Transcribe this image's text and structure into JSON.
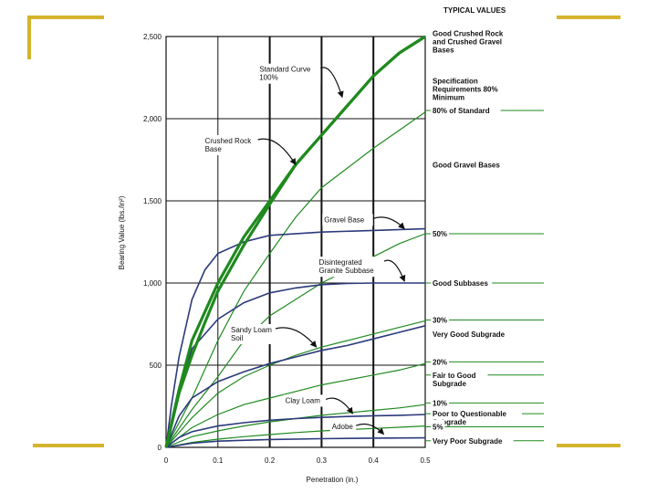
{
  "colors": {
    "slide_accent": "#d4b42c",
    "green_curve": "#1f8a1f",
    "blue_curve": "#2b3a7a",
    "grid": "#111111"
  },
  "chart_data": {
    "type": "line",
    "xlabel": "Penetration (in.)",
    "ylabel": "Bearing Value (lbs./in²)",
    "xlim": [
      0,
      0.5
    ],
    "ylim": [
      0,
      2500
    ],
    "x_ticks": [
      "0",
      "0.1",
      "0.2",
      "0.3",
      "0.4",
      "0.5"
    ],
    "y_ticks": [
      "0",
      "500",
      "1,000",
      "1,500",
      "2,000",
      "2,500"
    ],
    "typical_values_header": "TYPICAL VALUES",
    "standard_series": [
      {
        "name": "Standard Curve 100%",
        "label": "Standard Curve\n100%",
        "label_x": 0.18,
        "label_y": 2285,
        "arrow_to": [
          0.34,
          2130
        ],
        "points": [
          [
            0,
            0
          ],
          [
            0.025,
            350
          ],
          [
            0.05,
            650
          ],
          [
            0.1,
            1000
          ],
          [
            0.15,
            1280
          ],
          [
            0.2,
            1500
          ],
          [
            0.25,
            1720
          ],
          [
            0.3,
            1900
          ],
          [
            0.35,
            2080
          ],
          [
            0.4,
            2260
          ],
          [
            0.45,
            2400
          ],
          [
            0.5,
            2560
          ]
        ]
      },
      {
        "name": "Crushed Rock Base",
        "label": "Crushed Rock\nBase",
        "label_x": 0.075,
        "label_y": 1850,
        "arrow_to": [
          0.25,
          1720
        ],
        "points": [
          [
            0,
            0
          ],
          [
            0.025,
            330
          ],
          [
            0.05,
            560
          ],
          [
            0.075,
            760
          ],
          [
            0.1,
            950
          ],
          [
            0.15,
            1230
          ],
          [
            0.2,
            1480
          ],
          [
            0.25,
            1720
          ],
          [
            0.3,
            1900
          ],
          [
            0.35,
            2080
          ],
          [
            0.4,
            2260
          ],
          [
            0.45,
            2400
          ],
          [
            0.5,
            2560
          ]
        ]
      }
    ],
    "green_series": [
      {
        "name": "80% of Standard",
        "points": [
          [
            0,
            0
          ],
          [
            0.05,
            300
          ],
          [
            0.1,
            650
          ],
          [
            0.15,
            950
          ],
          [
            0.2,
            1180
          ],
          [
            0.25,
            1400
          ],
          [
            0.3,
            1580
          ],
          [
            0.35,
            1700
          ],
          [
            0.4,
            1820
          ],
          [
            0.45,
            1930
          ],
          [
            0.5,
            2040
          ]
        ]
      },
      {
        "name": "50%",
        "points": [
          [
            0,
            0
          ],
          [
            0.05,
            230
          ],
          [
            0.1,
            430
          ],
          [
            0.15,
            650
          ],
          [
            0.2,
            800
          ],
          [
            0.25,
            900
          ],
          [
            0.3,
            1000
          ],
          [
            0.35,
            1080
          ],
          [
            0.4,
            1160
          ],
          [
            0.45,
            1240
          ],
          [
            0.5,
            1300
          ]
        ]
      },
      {
        "name": "30%",
        "points": [
          [
            0,
            0
          ],
          [
            0.05,
            180
          ],
          [
            0.1,
            330
          ],
          [
            0.15,
            430
          ],
          [
            0.2,
            500
          ],
          [
            0.25,
            560
          ],
          [
            0.3,
            610
          ],
          [
            0.35,
            650
          ],
          [
            0.4,
            690
          ],
          [
            0.45,
            730
          ],
          [
            0.5,
            770
          ]
        ]
      },
      {
        "name": "20%",
        "points": [
          [
            0,
            0
          ],
          [
            0.05,
            120
          ],
          [
            0.1,
            200
          ],
          [
            0.15,
            260
          ],
          [
            0.2,
            300
          ],
          [
            0.25,
            340
          ],
          [
            0.3,
            380
          ],
          [
            0.35,
            410
          ],
          [
            0.4,
            440
          ],
          [
            0.45,
            470
          ],
          [
            0.5,
            510
          ]
        ]
      },
      {
        "name": "10%",
        "points": [
          [
            0,
            0
          ],
          [
            0.05,
            65
          ],
          [
            0.1,
            100
          ],
          [
            0.15,
            130
          ],
          [
            0.2,
            155
          ],
          [
            0.25,
            175
          ],
          [
            0.3,
            195
          ],
          [
            0.35,
            210
          ],
          [
            0.4,
            225
          ],
          [
            0.45,
            240
          ],
          [
            0.5,
            260
          ]
        ]
      },
      {
        "name": "5%",
        "points": [
          [
            0,
            0
          ],
          [
            0.05,
            30
          ],
          [
            0.1,
            50
          ],
          [
            0.15,
            65
          ],
          [
            0.2,
            78
          ],
          [
            0.25,
            90
          ],
          [
            0.3,
            100
          ],
          [
            0.35,
            108
          ],
          [
            0.4,
            115
          ],
          [
            0.45,
            122
          ],
          [
            0.5,
            130
          ]
        ]
      }
    ],
    "blue_series": [
      {
        "name": "Gravel Base",
        "label": "Gravel Base",
        "label_x": 0.305,
        "label_y": 1370,
        "arrow_to": [
          0.46,
          1330
        ],
        "points": [
          [
            0,
            0
          ],
          [
            0.01,
            250
          ],
          [
            0.025,
            550
          ],
          [
            0.05,
            900
          ],
          [
            0.075,
            1080
          ],
          [
            0.1,
            1180
          ],
          [
            0.15,
            1250
          ],
          [
            0.2,
            1290
          ],
          [
            0.3,
            1310
          ],
          [
            0.4,
            1320
          ],
          [
            0.5,
            1330
          ]
        ]
      },
      {
        "name": "Disintegrated Granite Subbase",
        "label": "Disintegrated\nGranite Subbase",
        "label_x": 0.295,
        "label_y": 1110,
        "arrow_to": [
          0.46,
          1010
        ],
        "points": [
          [
            0,
            0
          ],
          [
            0.025,
            350
          ],
          [
            0.05,
            600
          ],
          [
            0.1,
            780
          ],
          [
            0.15,
            880
          ],
          [
            0.2,
            940
          ],
          [
            0.25,
            970
          ],
          [
            0.3,
            990
          ],
          [
            0.35,
            997
          ],
          [
            0.4,
            1000
          ],
          [
            0.45,
            1000
          ],
          [
            0.5,
            1000
          ]
        ]
      },
      {
        "name": "Sandy Loam Soil",
        "label": "Sandy Loam\nSoil",
        "label_x": 0.125,
        "label_y": 700,
        "arrow_to": [
          0.29,
          610
        ],
        "points": [
          [
            0,
            0
          ],
          [
            0.025,
            190
          ],
          [
            0.05,
            300
          ],
          [
            0.1,
            400
          ],
          [
            0.15,
            460
          ],
          [
            0.2,
            510
          ],
          [
            0.25,
            550
          ],
          [
            0.3,
            590
          ],
          [
            0.35,
            620
          ],
          [
            0.4,
            660
          ],
          [
            0.45,
            700
          ],
          [
            0.5,
            740
          ]
        ]
      },
      {
        "name": "Clay Loam",
        "label": "Clay Loam",
        "label_x": 0.23,
        "label_y": 270,
        "arrow_to": [
          0.36,
          205
        ],
        "points": [
          [
            0,
            0
          ],
          [
            0.025,
            60
          ],
          [
            0.05,
            95
          ],
          [
            0.1,
            130
          ],
          [
            0.15,
            150
          ],
          [
            0.2,
            165
          ],
          [
            0.25,
            175
          ],
          [
            0.3,
            182
          ],
          [
            0.35,
            188
          ],
          [
            0.4,
            192
          ],
          [
            0.45,
            195
          ],
          [
            0.5,
            200
          ]
        ]
      },
      {
        "name": "Adobe",
        "label": "Adobe",
        "label_x": 0.32,
        "label_y": 110,
        "arrow_to": [
          0.42,
          80
        ],
        "points": [
          [
            0,
            0
          ],
          [
            0.05,
            25
          ],
          [
            0.1,
            38
          ],
          [
            0.2,
            48
          ],
          [
            0.3,
            53
          ],
          [
            0.4,
            56
          ],
          [
            0.5,
            58
          ]
        ]
      }
    ],
    "typical_values": [
      {
        "text": "Good Crushed Rock\nand Crushed Gravel\nBases",
        "y": 2520
      },
      {
        "text": "Specification\nRequirements 80%\nMinimum",
        "y": 2230
      },
      {
        "text": "80% of Standard",
        "y": 2050,
        "tick": true
      },
      {
        "text": "Good Gravel Bases",
        "y": 1720
      },
      {
        "text": "50%",
        "y": 1300,
        "tick": true
      },
      {
        "text": "Good Subbases",
        "y": 1000,
        "tick": true
      },
      {
        "text": "30%",
        "y": 775,
        "tick": true
      },
      {
        "text": "Very Good Subgrade",
        "y": 690
      },
      {
        "text": "20%",
        "y": 520,
        "tick": true
      },
      {
        "text": "Fair to Good\nSubgrade",
        "y": 440,
        "tick": true
      },
      {
        "text": "10%",
        "y": 270,
        "tick": true
      },
      {
        "text": "Poor to Questionable\nSubgrade",
        "y": 205,
        "tick": true
      },
      {
        "text": "5%",
        "y": 125,
        "tick": true
      },
      {
        "text": "Very Poor Subgrade",
        "y": 40,
        "tick": true
      }
    ]
  }
}
